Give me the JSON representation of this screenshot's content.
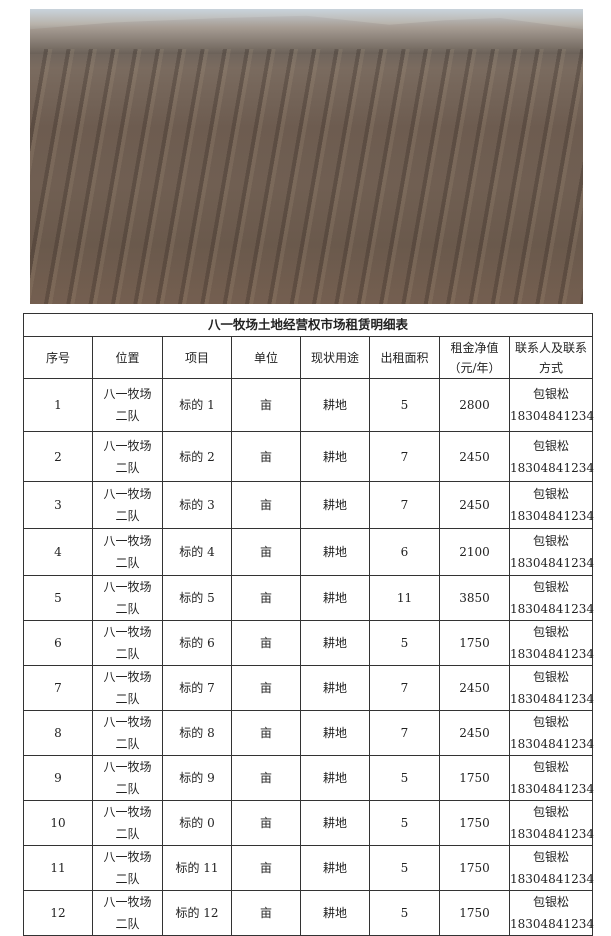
{
  "title": "八一牧场土地经营权市场租赁明细表",
  "headers": [
    "序号",
    "位置",
    "项目",
    "单位",
    "现状用途",
    "出租面积",
    "租金净值（元/年）",
    "联系人及联系方式"
  ],
  "rows": [
    {
      "no": "1",
      "loc1": "八一牧场",
      "loc2": "二队",
      "item": "标的 1",
      "unit": "亩",
      "use": "耕地",
      "area": "5",
      "rent": "2800",
      "name": "包银松",
      "phone": "18304841234"
    },
    {
      "no": "2",
      "loc1": "八一牧场",
      "loc2": "二队",
      "item": "标的 2",
      "unit": "亩",
      "use": "耕地",
      "area": "7",
      "rent": "2450",
      "name": "包银松",
      "phone": "18304841234"
    },
    {
      "no": "3",
      "loc1": "八一牧场",
      "loc2": "二队",
      "item": "标的 3",
      "unit": "亩",
      "use": "耕地",
      "area": "7",
      "rent": "2450",
      "name": "包银松",
      "phone": "18304841234"
    },
    {
      "no": "4",
      "loc1": "八一牧场",
      "loc2": "二队",
      "item": "标的 4",
      "unit": "亩",
      "use": "耕地",
      "area": "6",
      "rent": "2100",
      "name": "包银松",
      "phone": "18304841234"
    },
    {
      "no": "5",
      "loc1": "八一牧场",
      "loc2": "二队",
      "item": "标的 5",
      "unit": "亩",
      "use": "耕地",
      "area": "11",
      "rent": "3850",
      "name": "包银松",
      "phone": "18304841234"
    },
    {
      "no": "6",
      "loc1": "八一牧场",
      "loc2": "二队",
      "item": "标的 6",
      "unit": "亩",
      "use": "耕地",
      "area": "5",
      "rent": "1750",
      "name": "包银松",
      "phone": "18304841234"
    },
    {
      "no": "7",
      "loc1": "八一牧场",
      "loc2": "二队",
      "item": "标的 7",
      "unit": "亩",
      "use": "耕地",
      "area": "7",
      "rent": "2450",
      "name": "包银松",
      "phone": "18304841234"
    },
    {
      "no": "8",
      "loc1": "八一牧场",
      "loc2": "二队",
      "item": "标的 8",
      "unit": "亩",
      "use": "耕地",
      "area": "7",
      "rent": "2450",
      "name": "包银松",
      "phone": "18304841234"
    },
    {
      "no": "9",
      "loc1": "八一牧场",
      "loc2": "二队",
      "item": "标的 9",
      "unit": "亩",
      "use": "耕地",
      "area": "5",
      "rent": "1750",
      "name": "包银松",
      "phone": "18304841234"
    },
    {
      "no": "10",
      "loc1": "八一牧场",
      "loc2": "二队",
      "item": "标的 0",
      "unit": "亩",
      "use": "耕地",
      "area": "5",
      "rent": "1750",
      "name": "包银松",
      "phone": "18304841234"
    },
    {
      "no": "11",
      "loc1": "八一牧场",
      "loc2": "二队",
      "item": "标的 11",
      "unit": "亩",
      "use": "耕地",
      "area": "5",
      "rent": "1750",
      "name": "包银松",
      "phone": "18304841234"
    },
    {
      "no": "12",
      "loc1": "八一牧场",
      "loc2": "二队",
      "item": "标的 12",
      "unit": "亩",
      "use": "耕地",
      "area": "5",
      "rent": "1750",
      "name": "包银松",
      "phone": "18304841234"
    }
  ]
}
